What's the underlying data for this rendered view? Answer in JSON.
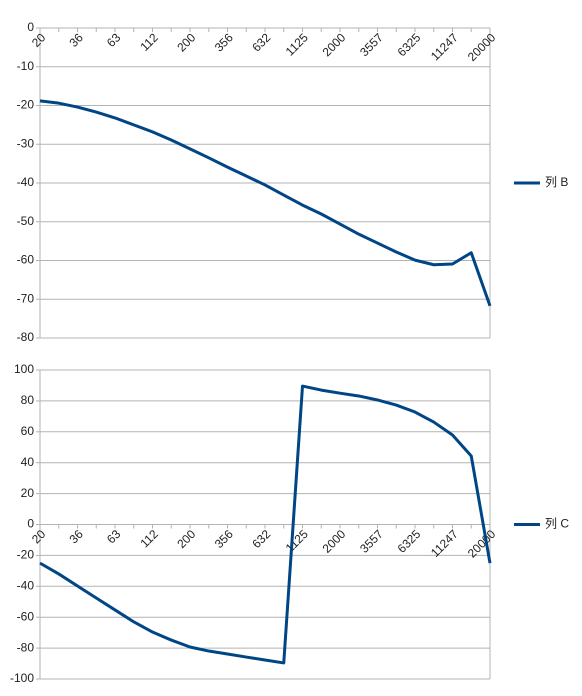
{
  "chart_data": [
    {
      "type": "line",
      "categories": [
        "20",
        null,
        "36",
        null,
        "63",
        null,
        "112",
        null,
        "200",
        null,
        "356",
        null,
        "632",
        null,
        "1125",
        null,
        "2000",
        null,
        "3557",
        null,
        "6325",
        null,
        "11247",
        null,
        "20000"
      ],
      "series": [
        {
          "name": "列 B",
          "color": "#004586",
          "values": [
            -18.8,
            -19.4,
            -20.4,
            -21.7,
            -23.2,
            -25,
            -26.8,
            -28.9,
            -31.2,
            -33.5,
            -35.9,
            -38.2,
            -40.5,
            -43.1,
            -45.7,
            -48,
            -50.6,
            -53.2,
            -55.5,
            -57.8,
            -59.9,
            -61.1,
            -60.9,
            -58,
            -71.7
          ]
        }
      ],
      "ylim": [
        -80,
        0
      ],
      "yticks": [
        0,
        -10,
        -20,
        -30,
        -40,
        -50,
        -60,
        -70,
        -80
      ],
      "grid": true,
      "legend": "right"
    },
    {
      "type": "line",
      "categories": [
        "20",
        null,
        "36",
        null,
        "63",
        null,
        "112",
        null,
        "200",
        null,
        "356",
        null,
        "632",
        null,
        "1125",
        null,
        "2000",
        null,
        "3557",
        null,
        "6325",
        null,
        "11247",
        null,
        "20000"
      ],
      "series": [
        {
          "name": "列 C",
          "color": "#004586",
          "values": [
            -25,
            -32,
            -39.8,
            -47.6,
            -55.3,
            -63,
            -69.6,
            -74.8,
            -79.3,
            -81.9,
            -83.8,
            -85.8,
            -87.7,
            -89.6,
            89.6,
            87,
            85,
            83.2,
            80.6,
            77.3,
            72.8,
            66.3,
            57.9,
            44.3,
            -25
          ]
        }
      ],
      "ylim": [
        -100,
        100
      ],
      "yticks": [
        100,
        80,
        60,
        40,
        20,
        0,
        -20,
        -40,
        -60,
        -80,
        -100
      ],
      "grid": true,
      "legend": "right"
    }
  ]
}
